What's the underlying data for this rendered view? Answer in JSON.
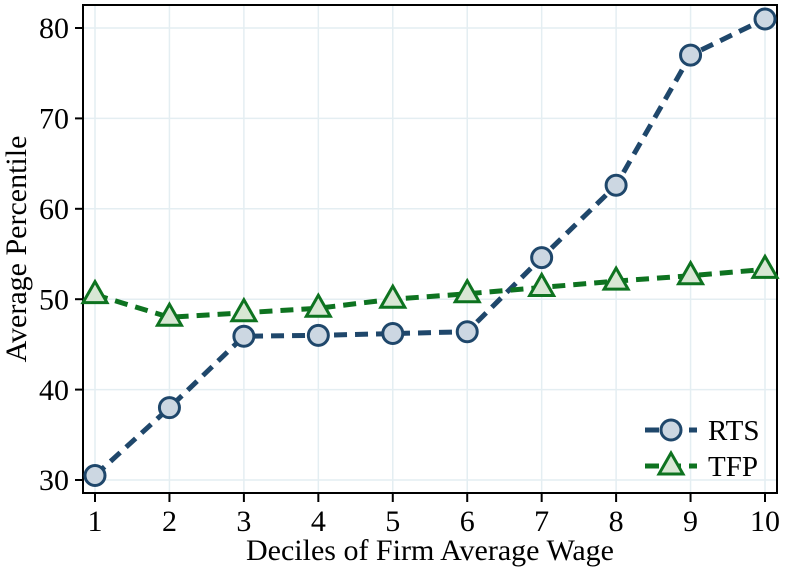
{
  "figure": {
    "background": "#ffffff",
    "frame_color": "#000000",
    "grid_color": "#e4eef2",
    "text_color": "#000000"
  },
  "chart_data": {
    "type": "line",
    "title": "",
    "xlabel": "Deciles of Firm Average Wage",
    "ylabel": "Average Percentile",
    "x": [
      1,
      2,
      3,
      4,
      5,
      6,
      7,
      8,
      9,
      10
    ],
    "x_tick_labels": [
      "1",
      "2",
      "3",
      "4",
      "5",
      "6",
      "7",
      "8",
      "9",
      "10"
    ],
    "y_ticks": [
      30,
      40,
      50,
      60,
      70,
      80
    ],
    "ylim": [
      28.5,
      82.5
    ],
    "xlim": [
      0.85,
      10.15
    ],
    "grid": true,
    "legend_position": "inside-bottom-right",
    "series": [
      {
        "name": "RTS",
        "marker": "circle",
        "line_style": "dashed",
        "color": "#1f476b",
        "marker_fill": "#ccd7e2",
        "values": [
          30.5,
          38.0,
          45.9,
          46.0,
          46.2,
          46.4,
          54.6,
          62.6,
          77.0,
          81.0
        ]
      },
      {
        "name": "TFP",
        "marker": "triangle",
        "line_style": "dashed",
        "color": "#0e7320",
        "marker_fill": "#d8e7d4",
        "values": [
          50.5,
          48.0,
          48.5,
          49.0,
          50.0,
          50.6,
          51.3,
          52.0,
          52.6,
          53.3
        ]
      }
    ]
  }
}
